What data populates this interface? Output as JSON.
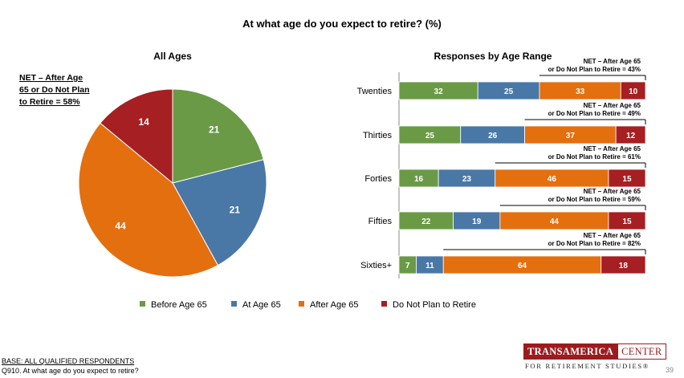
{
  "title": "At what age do you expect to retire? (%)",
  "colors": {
    "before_65": "#6a9a46",
    "at_65": "#4a78a6",
    "after_65": "#e46f0f",
    "not_plan": "#a51f23"
  },
  "chart_data": [
    {
      "type": "pie",
      "title": "All Ages",
      "categories": [
        "Before Age 65",
        "At Age 65",
        "After Age 65",
        "Do Not Plan to Retire"
      ],
      "values": [
        21,
        21,
        44,
        14
      ],
      "annotation": [
        "NET – After Age",
        "65 or Do Not Plan",
        "to Retire = 58%"
      ]
    },
    {
      "type": "bar",
      "orientation": "horizontal",
      "stacked": true,
      "title": "Responses by Age Range",
      "categories": [
        "Twenties",
        "Thirties",
        "Forties",
        "Fifties",
        "Sixties+"
      ],
      "series": [
        {
          "name": "Before Age 65",
          "values": [
            32,
            25,
            16,
            22,
            7
          ]
        },
        {
          "name": "At Age 65",
          "values": [
            25,
            26,
            23,
            19,
            11
          ]
        },
        {
          "name": "After Age 65",
          "values": [
            33,
            37,
            46,
            44,
            64
          ]
        },
        {
          "name": "Do Not Plan to Retire",
          "values": [
            10,
            12,
            15,
            15,
            18
          ]
        }
      ],
      "net_labels": [
        [
          "NET – After Age 65",
          "or Do Not Plan to Retire = 43%"
        ],
        [
          "NET – After Age 65",
          "or Do Not Plan to Retire = 49%"
        ],
        [
          "NET – After Age 65",
          "or Do Not Plan to Retire = 61%"
        ],
        [
          "NET – After Age 65",
          "or Do Not Plan to Retire = 59%"
        ],
        [
          "NET – After Age 65",
          "or Do Not Plan to Retire = 82%"
        ]
      ],
      "xlim": [
        0,
        100
      ]
    }
  ],
  "legend": [
    "Before Age 65",
    "At Age 65",
    "After Age 65",
    "Do Not Plan to Retire"
  ],
  "footer": {
    "base": "BASE: ALL QUALIFIED RESPONDENTS",
    "question": "Q910. At what age do you expect to retire?",
    "page": "39"
  },
  "logo": {
    "part1": "TRANSAMERICA",
    "part2": "CENTER",
    "sub": "FOR RETIREMENT STUDIES®"
  }
}
